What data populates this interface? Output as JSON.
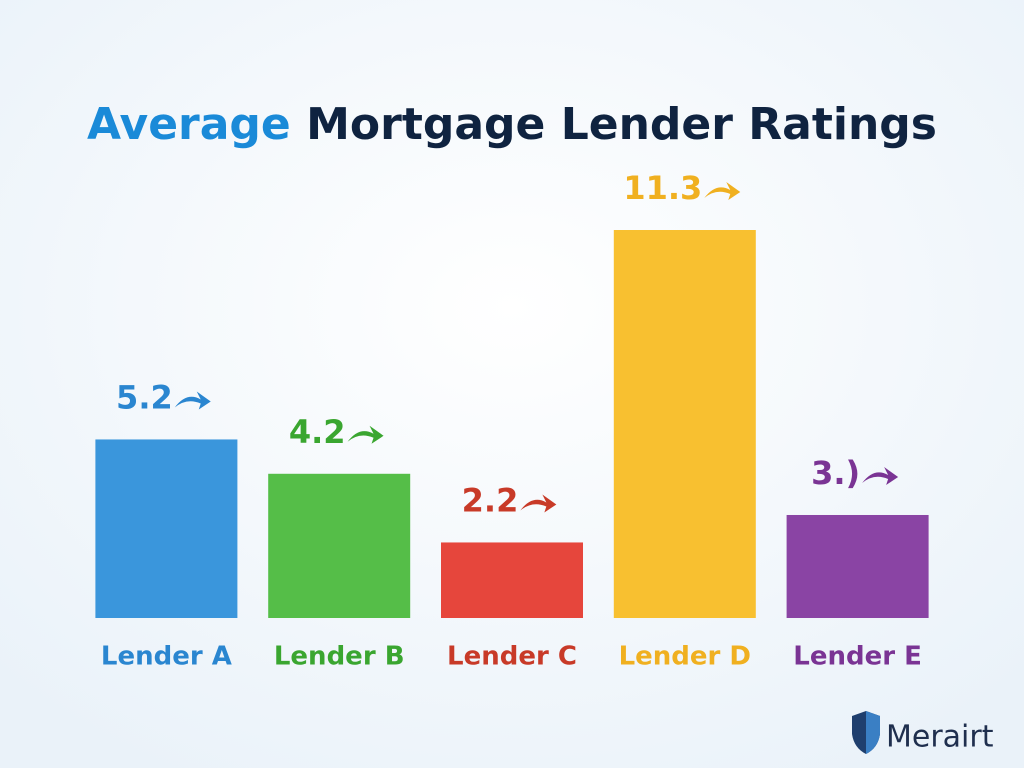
{
  "chart_data": {
    "type": "bar",
    "title": "Average Mortgage Lender Ratings",
    "categories": [
      "Lender A",
      "Lender B",
      "Lender C",
      "Lender D",
      "Lender E"
    ],
    "values": [
      5.2,
      4.2,
      2.2,
      11.3,
      3
    ],
    "value_labels": [
      "5.2",
      "4.2",
      "2.2",
      "11.3",
      "3.)"
    ],
    "colors": [
      "#3a96dc",
      "#55be48",
      "#e6463c",
      "#f8c030",
      "#8a44a4"
    ],
    "label_colors": [
      "#2a86d0",
      "#3aa630",
      "#c83a28",
      "#f0b020",
      "#7a3494"
    ]
  },
  "brand": "Merairt"
}
